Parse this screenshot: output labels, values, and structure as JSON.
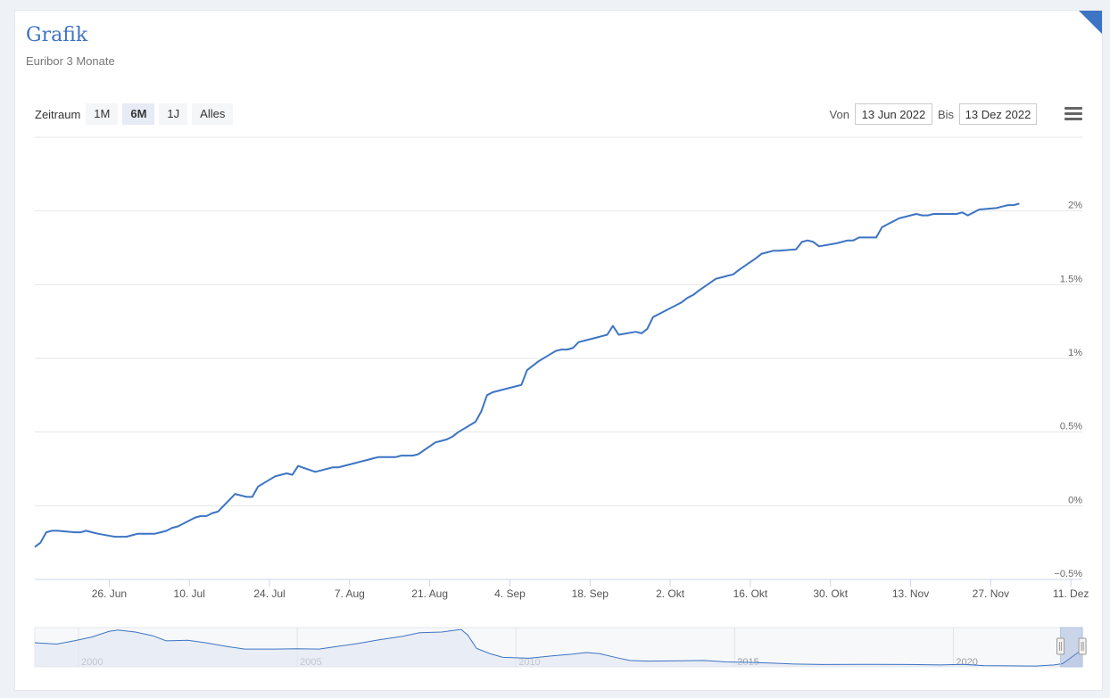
{
  "header": {
    "title": "Grafik",
    "subtitle": "Euribor 3 Monate"
  },
  "range_selector": {
    "label": "Zeitraum",
    "buttons": [
      "1M",
      "6M",
      "1J",
      "Alles"
    ],
    "active": "6M"
  },
  "date_range": {
    "from_label": "Von",
    "from_value": "13 Jun 2022",
    "to_label": "Bis",
    "to_value": "13 Dez 2022"
  },
  "colors": {
    "series": "#3d74c4",
    "title": "#3d74c4",
    "navigator_fill": "#dfe6f1"
  },
  "chart_data": {
    "type": "line",
    "title": "Grafik",
    "subtitle": "Euribor 3 Monate",
    "xlabel": "",
    "ylabel": "",
    "ylim": [
      -0.5,
      2.5
    ],
    "y_ticks": [
      "−0.5%",
      "0%",
      "0.5%",
      "1%",
      "1.5%",
      "2%"
    ],
    "y_tick_values": [
      -0.5,
      0,
      0.5,
      1,
      1.5,
      2
    ],
    "x_ticks": [
      "26. Jun",
      "10. Jul",
      "24. Jul",
      "7. Aug",
      "21. Aug",
      "4. Sep",
      "18. Sep",
      "2. Okt",
      "16. Okt",
      "30. Okt",
      "13. Nov",
      "27. Nov",
      "11. Dez"
    ],
    "x_tick_dates": [
      "2022-06-26",
      "2022-07-10",
      "2022-07-24",
      "2022-08-07",
      "2022-08-21",
      "2022-09-04",
      "2022-09-18",
      "2022-10-02",
      "2022-10-16",
      "2022-10-30",
      "2022-11-13",
      "2022-11-27",
      "2022-12-11"
    ],
    "x_range": [
      "2022-06-13",
      "2022-12-13"
    ],
    "grid": true,
    "y_axis_side": "right",
    "series": [
      {
        "points": [
          [
            "2022-06-13",
            -0.28
          ],
          [
            "2022-06-14",
            -0.25
          ],
          [
            "2022-06-15",
            -0.18
          ],
          [
            "2022-06-16",
            -0.17
          ],
          [
            "2022-06-17",
            -0.17
          ],
          [
            "2022-06-20",
            -0.18
          ],
          [
            "2022-06-21",
            -0.18
          ],
          [
            "2022-06-22",
            -0.17
          ],
          [
            "2022-06-23",
            -0.18
          ],
          [
            "2022-06-24",
            -0.19
          ],
          [
            "2022-06-27",
            -0.21
          ],
          [
            "2022-06-28",
            -0.21
          ],
          [
            "2022-06-29",
            -0.21
          ],
          [
            "2022-06-30",
            -0.2
          ],
          [
            "2022-07-01",
            -0.19
          ],
          [
            "2022-07-04",
            -0.19
          ],
          [
            "2022-07-05",
            -0.18
          ],
          [
            "2022-07-06",
            -0.17
          ],
          [
            "2022-07-07",
            -0.15
          ],
          [
            "2022-07-08",
            -0.14
          ],
          [
            "2022-07-11",
            -0.08
          ],
          [
            "2022-07-12",
            -0.07
          ],
          [
            "2022-07-13",
            -0.07
          ],
          [
            "2022-07-14",
            -0.05
          ],
          [
            "2022-07-15",
            -0.04
          ],
          [
            "2022-07-18",
            0.08
          ],
          [
            "2022-07-19",
            0.07
          ],
          [
            "2022-07-20",
            0.06
          ],
          [
            "2022-07-21",
            0.06
          ],
          [
            "2022-07-22",
            0.13
          ],
          [
            "2022-07-25",
            0.2
          ],
          [
            "2022-07-26",
            0.21
          ],
          [
            "2022-07-27",
            0.22
          ],
          [
            "2022-07-28",
            0.21
          ],
          [
            "2022-07-29",
            0.27
          ],
          [
            "2022-08-01",
            0.23
          ],
          [
            "2022-08-02",
            0.24
          ],
          [
            "2022-08-03",
            0.25
          ],
          [
            "2022-08-04",
            0.26
          ],
          [
            "2022-08-05",
            0.26
          ],
          [
            "2022-08-08",
            0.29
          ],
          [
            "2022-08-09",
            0.3
          ],
          [
            "2022-08-10",
            0.31
          ],
          [
            "2022-08-11",
            0.32
          ],
          [
            "2022-08-12",
            0.33
          ],
          [
            "2022-08-15",
            0.33
          ],
          [
            "2022-08-16",
            0.34
          ],
          [
            "2022-08-17",
            0.34
          ],
          [
            "2022-08-18",
            0.34
          ],
          [
            "2022-08-19",
            0.35
          ],
          [
            "2022-08-22",
            0.43
          ],
          [
            "2022-08-23",
            0.44
          ],
          [
            "2022-08-24",
            0.45
          ],
          [
            "2022-08-25",
            0.47
          ],
          [
            "2022-08-26",
            0.5
          ],
          [
            "2022-08-29",
            0.57
          ],
          [
            "2022-08-30",
            0.64
          ],
          [
            "2022-08-31",
            0.75
          ],
          [
            "2022-09-01",
            0.77
          ],
          [
            "2022-09-02",
            0.78
          ],
          [
            "2022-09-05",
            0.81
          ],
          [
            "2022-09-06",
            0.82
          ],
          [
            "2022-09-07",
            0.92
          ],
          [
            "2022-09-08",
            0.95
          ],
          [
            "2022-09-09",
            0.98
          ],
          [
            "2022-09-12",
            1.05
          ],
          [
            "2022-09-13",
            1.06
          ],
          [
            "2022-09-14",
            1.06
          ],
          [
            "2022-09-15",
            1.07
          ],
          [
            "2022-09-16",
            1.11
          ],
          [
            "2022-09-19",
            1.14
          ],
          [
            "2022-09-20",
            1.15
          ],
          [
            "2022-09-21",
            1.16
          ],
          [
            "2022-09-22",
            1.22
          ],
          [
            "2022-09-23",
            1.16
          ],
          [
            "2022-09-26",
            1.18
          ],
          [
            "2022-09-27",
            1.17
          ],
          [
            "2022-09-28",
            1.2
          ],
          [
            "2022-09-29",
            1.28
          ],
          [
            "2022-09-30",
            1.3
          ],
          [
            "2022-10-03",
            1.36
          ],
          [
            "2022-10-04",
            1.38
          ],
          [
            "2022-10-05",
            1.41
          ],
          [
            "2022-10-06",
            1.43
          ],
          [
            "2022-10-07",
            1.46
          ],
          [
            "2022-10-10",
            1.54
          ],
          [
            "2022-10-11",
            1.55
          ],
          [
            "2022-10-12",
            1.56
          ],
          [
            "2022-10-13",
            1.57
          ],
          [
            "2022-10-14",
            1.6
          ],
          [
            "2022-10-17",
            1.68
          ],
          [
            "2022-10-18",
            1.71
          ],
          [
            "2022-10-19",
            1.72
          ],
          [
            "2022-10-20",
            1.73
          ],
          [
            "2022-10-21",
            1.73
          ],
          [
            "2022-10-24",
            1.74
          ],
          [
            "2022-10-25",
            1.79
          ],
          [
            "2022-10-26",
            1.8
          ],
          [
            "2022-10-27",
            1.79
          ],
          [
            "2022-10-28",
            1.76
          ],
          [
            "2022-10-31",
            1.78
          ],
          [
            "2022-11-01",
            1.79
          ],
          [
            "2022-11-02",
            1.8
          ],
          [
            "2022-11-03",
            1.8
          ],
          [
            "2022-11-04",
            1.82
          ],
          [
            "2022-11-07",
            1.82
          ],
          [
            "2022-11-08",
            1.89
          ],
          [
            "2022-11-09",
            1.91
          ],
          [
            "2022-11-10",
            1.93
          ],
          [
            "2022-11-11",
            1.95
          ],
          [
            "2022-11-14",
            1.98
          ],
          [
            "2022-11-15",
            1.97
          ],
          [
            "2022-11-16",
            1.97
          ],
          [
            "2022-11-17",
            1.98
          ],
          [
            "2022-11-18",
            1.98
          ],
          [
            "2022-11-21",
            1.98
          ],
          [
            "2022-11-22",
            1.99
          ],
          [
            "2022-11-23",
            1.97
          ],
          [
            "2022-11-24",
            1.99
          ],
          [
            "2022-11-25",
            2.01
          ],
          [
            "2022-11-28",
            2.02
          ],
          [
            "2022-11-29",
            2.03
          ],
          [
            "2022-11-30",
            2.04
          ],
          [
            "2022-12-01",
            2.04
          ],
          [
            "2022-12-02",
            2.05
          ]
        ]
      }
    ],
    "navigator": {
      "x_ticks": [
        "2000",
        "2005",
        "2010",
        "2015",
        "2020"
      ],
      "x_tick_years": [
        2000,
        2005,
        2010,
        2015,
        2020
      ],
      "x_range": [
        1999.0,
        2022.95
      ],
      "ylim": [
        -0.7,
        5.5
      ],
      "selected_range": [
        "2022-06-13",
        "2022-12-13"
      ],
      "points": [
        [
          1999.0,
          3.1
        ],
        [
          1999.5,
          2.9
        ],
        [
          1999.9,
          3.4
        ],
        [
          2000.3,
          4.0
        ],
        [
          2000.7,
          4.9
        ],
        [
          2000.9,
          5.1
        ],
        [
          2001.3,
          4.8
        ],
        [
          2001.7,
          4.2
        ],
        [
          2002.0,
          3.4
        ],
        [
          2002.5,
          3.5
        ],
        [
          2002.9,
          3.1
        ],
        [
          2003.4,
          2.5
        ],
        [
          2003.8,
          2.1
        ],
        [
          2004.5,
          2.1
        ],
        [
          2005.0,
          2.15
        ],
        [
          2005.5,
          2.1
        ],
        [
          2005.9,
          2.5
        ],
        [
          2006.4,
          3.0
        ],
        [
          2006.9,
          3.6
        ],
        [
          2007.4,
          4.1
        ],
        [
          2007.8,
          4.7
        ],
        [
          2008.3,
          4.8
        ],
        [
          2008.75,
          5.2
        ],
        [
          2008.9,
          4.3
        ],
        [
          2009.1,
          2.2
        ],
        [
          2009.4,
          1.4
        ],
        [
          2009.7,
          0.8
        ],
        [
          2010.3,
          0.65
        ],
        [
          2010.8,
          1.0
        ],
        [
          2011.3,
          1.3
        ],
        [
          2011.6,
          1.55
        ],
        [
          2011.9,
          1.4
        ],
        [
          2012.3,
          0.75
        ],
        [
          2012.6,
          0.3
        ],
        [
          2013.0,
          0.2
        ],
        [
          2013.8,
          0.25
        ],
        [
          2014.3,
          0.3
        ],
        [
          2014.8,
          0.08
        ],
        [
          2015.3,
          0.0
        ],
        [
          2015.8,
          -0.1
        ],
        [
          2016.3,
          -0.25
        ],
        [
          2017.0,
          -0.33
        ],
        [
          2018.0,
          -0.32
        ],
        [
          2019.0,
          -0.33
        ],
        [
          2019.7,
          -0.4
        ],
        [
          2020.2,
          -0.3
        ],
        [
          2020.7,
          -0.5
        ],
        [
          2021.3,
          -0.54
        ],
        [
          2021.9,
          -0.57
        ],
        [
          2022.3,
          -0.4
        ],
        [
          2022.5,
          -0.2
        ],
        [
          2022.7,
          0.8
        ],
        [
          2022.95,
          2.05
        ]
      ]
    }
  }
}
